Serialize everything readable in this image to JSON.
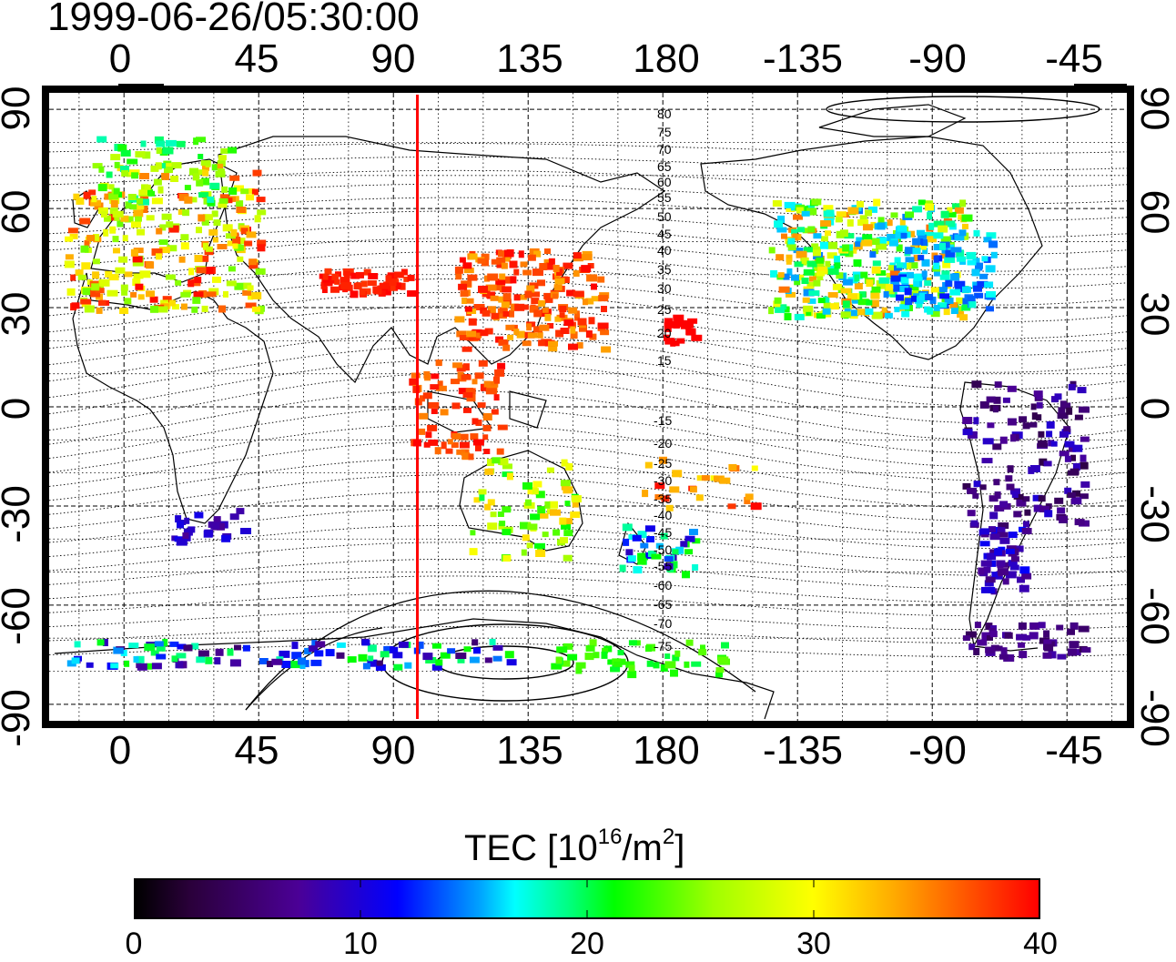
{
  "title": "1999-06-26/05:30:00",
  "axes": {
    "top_ticks": [
      "0",
      "45",
      "90",
      "135",
      "180",
      "-135",
      "-90",
      "-45"
    ],
    "bottom_ticks": [
      "0",
      "45",
      "90",
      "135",
      "180",
      "-135",
      "-90",
      "-45"
    ],
    "left_ticks": [
      "90",
      "60",
      "30",
      "0",
      "-30",
      "-60",
      "-90"
    ],
    "right_ticks": [
      "90",
      "60",
      "30",
      "0",
      "-30",
      "-60",
      "-90"
    ],
    "lon_range": [
      -25,
      335
    ],
    "lat_range": [
      -95,
      95
    ]
  },
  "contour_labels": {
    "north": [
      "80",
      "75",
      "70",
      "65",
      "60",
      "55",
      "50",
      "45",
      "40",
      "35",
      "30",
      "25",
      "20",
      "15"
    ],
    "south": [
      "-15",
      "-20",
      "-25",
      "-30",
      "-35",
      "-40",
      "-45",
      "-50",
      "-55",
      "-60",
      "-65",
      "-70",
      "-75"
    ]
  },
  "terminator_lon": 98,
  "colorbar": {
    "title_main": "TEC  [10",
    "title_exp": "16",
    "title_mid": "/m",
    "title_exp2": "2",
    "title_end": "]",
    "ticks": [
      "0",
      "10",
      "20",
      "30",
      "40"
    ],
    "range": [
      0,
      40
    ]
  },
  "colors": {
    "terminator": "#ff0000",
    "frame": "#000000"
  }
}
